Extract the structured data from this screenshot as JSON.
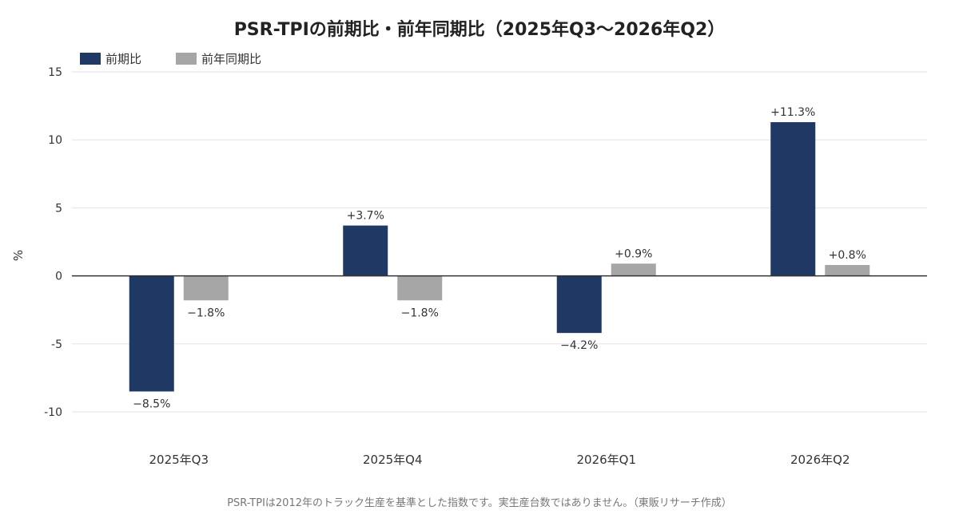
{
  "chart_data": {
    "type": "bar",
    "title": "PSR-TPIの前期比・前年同期比（2025年Q3〜2026年Q2）",
    "ylabel": "%",
    "xlabel": "",
    "categories": [
      "2025年Q3",
      "2025年Q4",
      "2026年Q1",
      "2026年Q2"
    ],
    "series": [
      {
        "name": "前期比",
        "color": "#1f3864",
        "values": [
          -8.5,
          3.7,
          -4.2,
          11.3
        ],
        "labels": [
          "−8.5%",
          "+3.7%",
          "−4.2%",
          "+11.3%"
        ]
      },
      {
        "name": "前年同期比",
        "color": "#a6a6a6",
        "values": [
          -1.8,
          -1.8,
          0.9,
          0.8
        ],
        "labels": [
          "−1.8%",
          "−1.8%",
          "+0.9%",
          "+0.8%"
        ]
      }
    ],
    "ylim": [
      -12,
      15
    ],
    "yticks": [
      15,
      10,
      5,
      0,
      -5,
      -10
    ],
    "ytick_labels": [
      "15",
      "10",
      "5",
      "0",
      "-5",
      "-10"
    ],
    "grid": true,
    "legend": "top-left"
  },
  "footnote": "PSR-TPIは2012年のトラック生産を基準とした指数です。実生産台数ではありません。（東販リサーチ作成）"
}
